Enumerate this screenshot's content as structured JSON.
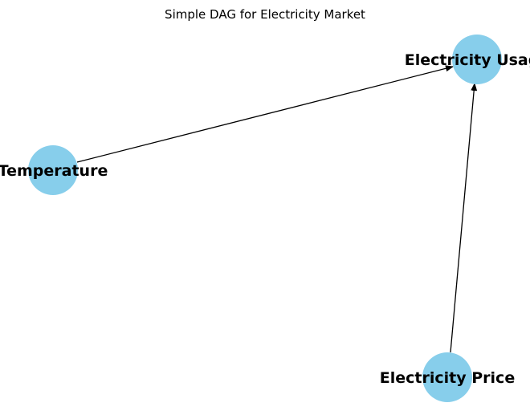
{
  "diagram": {
    "title": "Simple DAG for Electricity Market",
    "node_color": "#87ceeb",
    "edge_color": "#000000",
    "nodes": [
      {
        "id": "temperature",
        "label": "Temperature"
      },
      {
        "id": "usage",
        "label": "Electricity Usage"
      },
      {
        "id": "price",
        "label": "Electricity Price"
      }
    ],
    "edges": [
      {
        "from": "temperature",
        "to": "usage"
      },
      {
        "from": "price",
        "to": "usage"
      }
    ]
  }
}
